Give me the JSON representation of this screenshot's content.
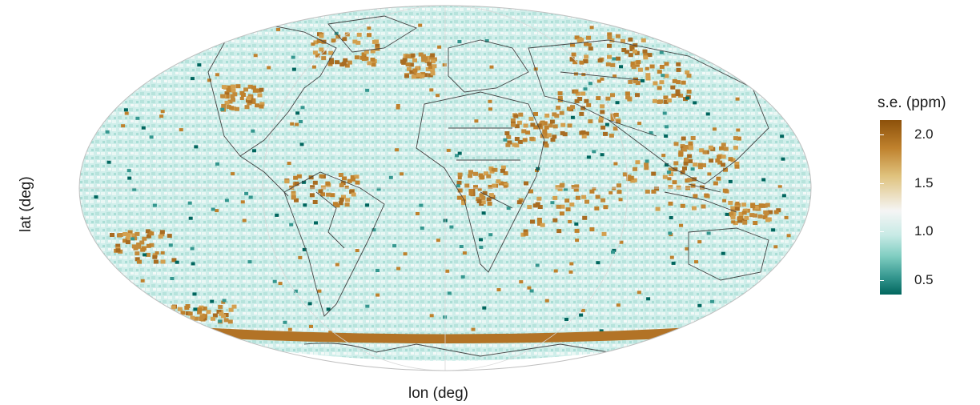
{
  "map": {
    "projection": "mollweide",
    "x_label": "lon (deg)",
    "y_label": "lat (deg)",
    "fill_variable": "s.e. (ppm)",
    "graticule": true,
    "country_borders": true
  },
  "legend": {
    "title": "s.e. (ppm)",
    "placement": "right",
    "ticks": [
      {
        "value": 2.0,
        "label": "2.0"
      },
      {
        "value": 1.5,
        "label": "1.5"
      },
      {
        "value": 1.0,
        "label": "1.0"
      },
      {
        "value": 0.5,
        "label": "0.5"
      }
    ],
    "range": [
      0.35,
      2.15
    ],
    "colors": [
      "#8c510a",
      "#bf812d",
      "#dfc27d",
      "#f5f5f5",
      "#c7eae5",
      "#80cdc1",
      "#35978f",
      "#01665e"
    ]
  },
  "regions": {
    "high_error_areas": [
      "Southern Ocean band near 60S",
      "Western Indian Ocean",
      "Maritime Continent",
      "Central Asia",
      "Tropical Africa",
      "South America"
    ],
    "low_error_areas": [
      "Open oceans",
      "Northern continents"
    ]
  }
}
